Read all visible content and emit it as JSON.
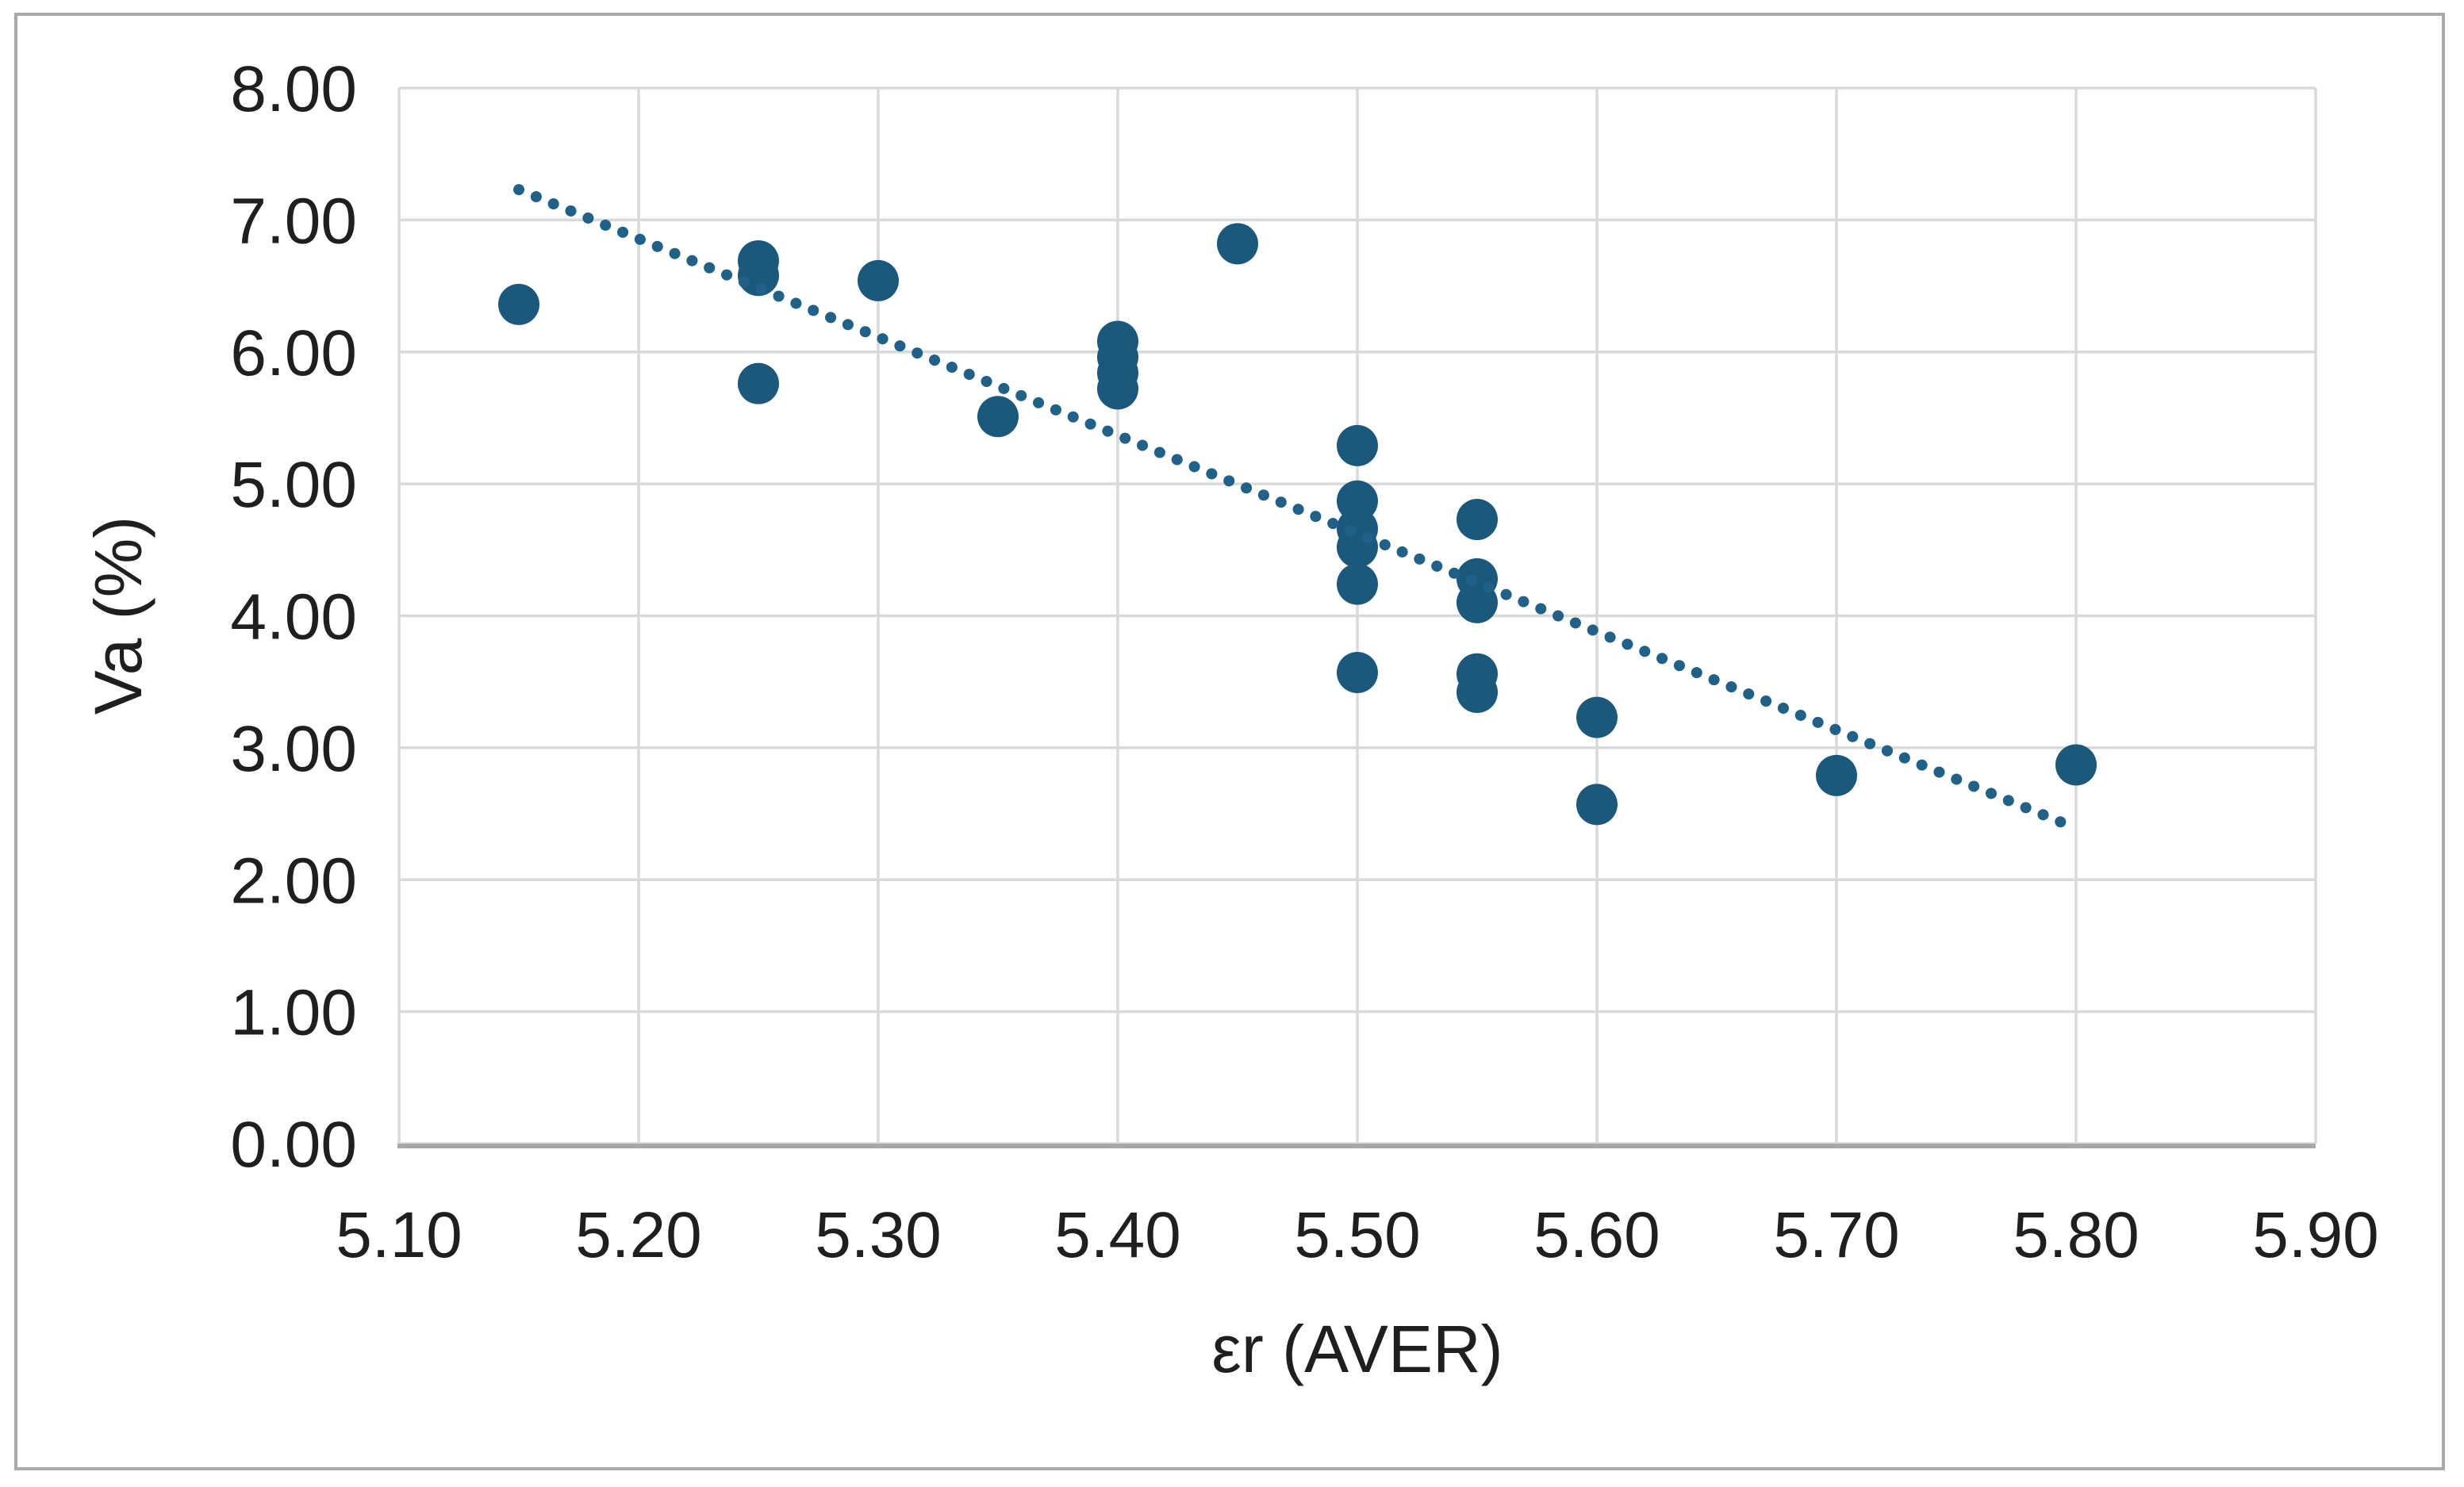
{
  "chart_data": {
    "type": "scatter",
    "title": "",
    "xlabel": "εr (AVER)",
    "ylabel": "Va (%)",
    "x_ticks": [
      "5.10",
      "5.20",
      "5.30",
      "5.40",
      "5.50",
      "5.60",
      "5.70",
      "5.80",
      "5.90"
    ],
    "y_ticks": [
      "0.00",
      "1.00",
      "2.00",
      "3.00",
      "4.00",
      "5.00",
      "6.00",
      "7.00",
      "8.00"
    ],
    "xlim": [
      5.1,
      5.9
    ],
    "ylim": [
      0.0,
      8.0
    ],
    "grid": true,
    "legend": false,
    "marker_shape": "circle",
    "points": [
      [
        5.15,
        6.36
      ],
      [
        5.25,
        6.69
      ],
      [
        5.25,
        6.58
      ],
      [
        5.25,
        5.76
      ],
      [
        5.3,
        6.54
      ],
      [
        5.35,
        5.51
      ],
      [
        5.4,
        6.08
      ],
      [
        5.4,
        5.96
      ],
      [
        5.4,
        5.84
      ],
      [
        5.4,
        5.72
      ],
      [
        5.45,
        6.82
      ],
      [
        5.5,
        5.29
      ],
      [
        5.5,
        4.87
      ],
      [
        5.5,
        4.66
      ],
      [
        5.5,
        4.52
      ],
      [
        5.5,
        4.24
      ],
      [
        5.5,
        3.57
      ],
      [
        5.55,
        4.73
      ],
      [
        5.55,
        4.28
      ],
      [
        5.55,
        4.1
      ],
      [
        5.55,
        3.56
      ],
      [
        5.55,
        3.42
      ],
      [
        5.6,
        3.23
      ],
      [
        5.6,
        2.57
      ],
      [
        5.7,
        2.79
      ],
      [
        5.8,
        2.87
      ]
    ],
    "trendline": {
      "type": "linear",
      "style": "dotted",
      "x_start": 5.15,
      "y_start": 7.23,
      "x_end": 5.8,
      "y_end": 2.39
    },
    "colors": {
      "marker": "#1b597c",
      "trend": "#1f6188",
      "grid": "#d9d9d9",
      "axis_line": "#a8a8a8",
      "text": "#1f1f1f",
      "border": "#a9a9a9"
    }
  }
}
